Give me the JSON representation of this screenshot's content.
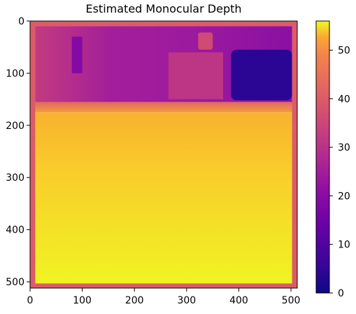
{
  "chart_data": {
    "type": "heatmap",
    "title": "Estimated Monocular Depth",
    "xlabel": "",
    "ylabel": "",
    "xlim": [
      0,
      512
    ],
    "ylim": [
      512,
      0
    ],
    "x_ticks": [
      0,
      100,
      200,
      300,
      400,
      500
    ],
    "y_ticks": [
      0,
      100,
      200,
      300,
      400,
      500
    ],
    "colormap": "plasma",
    "colorbar": {
      "range": [
        0,
        56
      ],
      "ticks": [
        0,
        10,
        20,
        30,
        40,
        50
      ]
    },
    "image_regions": [
      {
        "region": "left border",
        "x": [
          0,
          10
        ],
        "y": [
          0,
          512
        ],
        "depth": 40
      },
      {
        "region": "right border",
        "x": [
          502,
          512
        ],
        "y": [
          0,
          512
        ],
        "depth": 40
      },
      {
        "region": "top border",
        "x": [
          0,
          512
        ],
        "y": [
          0,
          10
        ],
        "depth": 40
      },
      {
        "region": "bottom border",
        "x": [
          0,
          512
        ],
        "y": [
          503,
          512
        ],
        "depth": 40
      },
      {
        "region": "upper background",
        "x": [
          10,
          502
        ],
        "y": [
          10,
          155
        ],
        "depth": 23
      },
      {
        "region": "dark object right",
        "x": [
          385,
          502
        ],
        "y": [
          55,
          152
        ],
        "depth": 4
      },
      {
        "region": "central box",
        "x": [
          265,
          370
        ],
        "y": [
          60,
          150
        ],
        "depth": 31
      },
      {
        "region": "small object top",
        "x": [
          322,
          350
        ],
        "y": [
          22,
          55
        ],
        "depth": 36
      },
      {
        "region": "left vertical structure",
        "x": [
          80,
          100
        ],
        "y": [
          30,
          100
        ],
        "depth": 19
      },
      {
        "region": "transition band",
        "x": [
          10,
          502
        ],
        "y": [
          150,
          175
        ],
        "depth": 40
      },
      {
        "region": "floor",
        "x": [
          10,
          502
        ],
        "y": [
          175,
          503
        ],
        "depth": 51
      }
    ]
  }
}
